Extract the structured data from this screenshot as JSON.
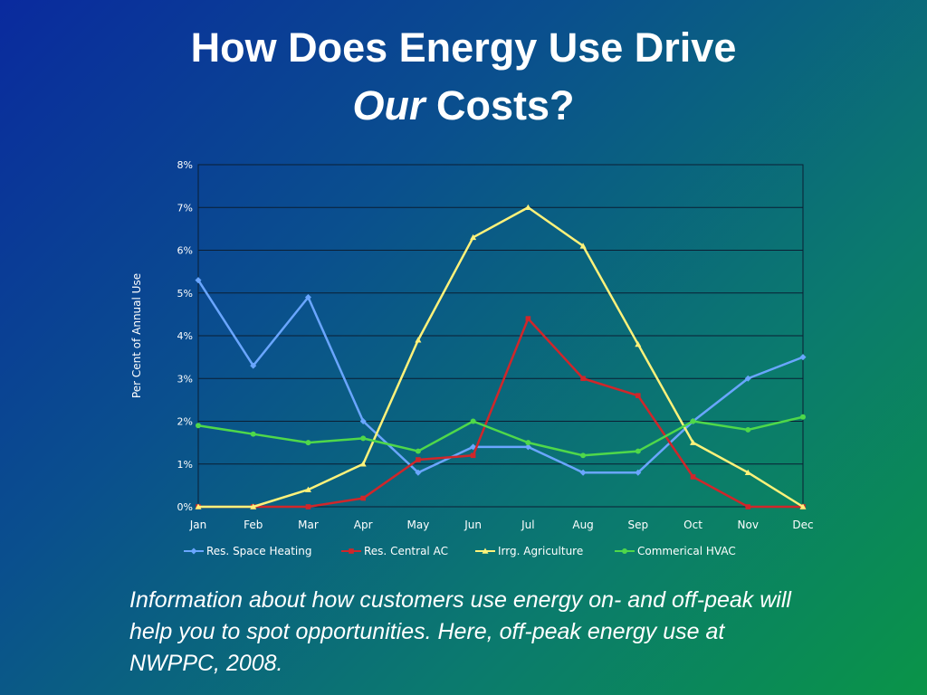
{
  "slide": {
    "title_line1": "How Does Energy Use Drive",
    "title_line2_em": "Our",
    "title_line2_rest": "Costs?",
    "caption": "Information about how customers use energy on- and off-peak will help you to spot opportunities. Here, off-peak energy use at NWPPC, 2008."
  },
  "chart_data": {
    "type": "line",
    "title": "",
    "xlabel": "",
    "ylabel": "Per Cent of Annual Use",
    "categories": [
      "Jan",
      "Feb",
      "Mar",
      "Apr",
      "May",
      "Jun",
      "Jul",
      "Aug",
      "Sep",
      "Oct",
      "Nov",
      "Dec"
    ],
    "ylim": [
      0,
      8
    ],
    "yticks": [
      "0%",
      "1%",
      "2%",
      "3%",
      "4%",
      "5%",
      "6%",
      "7%",
      "8%"
    ],
    "grid": true,
    "legend_position": "bottom",
    "series": [
      {
        "name": "Res. Space Heating",
        "color": "#6aa6ff",
        "marker": "diamond",
        "values": [
          5.3,
          3.3,
          4.9,
          2.0,
          0.8,
          1.4,
          1.4,
          0.8,
          0.8,
          2.0,
          3.0,
          3.5
        ]
      },
      {
        "name": "Res. Central AC",
        "color": "#d0262a",
        "marker": "square",
        "values": [
          0,
          0,
          0,
          0.2,
          1.1,
          1.2,
          4.4,
          3.0,
          2.6,
          0.7,
          0,
          0
        ]
      },
      {
        "name": "Irrg. Agriculture",
        "color": "#fff27a",
        "marker": "triangle",
        "values": [
          0,
          0,
          0.4,
          1.0,
          3.9,
          6.3,
          7.0,
          6.1,
          3.8,
          1.5,
          0.8,
          0
        ]
      },
      {
        "name": "Commerical HVAC",
        "color": "#4fd84a",
        "marker": "circle",
        "values": [
          1.9,
          1.7,
          1.5,
          1.6,
          1.3,
          2.0,
          1.5,
          1.2,
          1.3,
          2.0,
          1.8,
          2.1
        ]
      }
    ]
  }
}
